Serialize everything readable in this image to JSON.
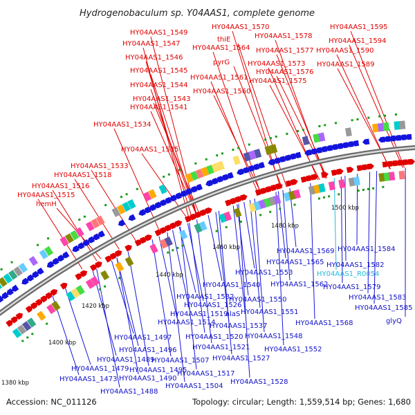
{
  "title": "Hydrogenobaculum sp. Y04AAS1, complete genome",
  "footer": {
    "accession": "Accession: NC_011126",
    "topology": "Topology: circular; Length: 1,559,514 bp; Genes: 1,680"
  },
  "ticks": [
    "1380 kbp",
    "1400 kbp",
    "1420 kbp",
    "1440 kbp",
    "1460 kbp",
    "1480 kbp",
    "1500 kbp"
  ],
  "top_labels": [
    "HY04AAS1_1549",
    "HY04AAS1_1547",
    "HY04AAS1_1546",
    "HY04AAS1_1545",
    "HY04AAS1_1544",
    "HY04AAS1_1543",
    "HY04AAS1_1541",
    "HY04AAS1_1534",
    "HY04AAS1_1535",
    "HY04AAS1_1533",
    "HY04AAS1_1518",
    "HY04AAS1_1516",
    "HY04AAS1_1515",
    "hemH",
    "HY04AAS1_1570",
    "thiE",
    "HY04AAS1_1564",
    "pyrG",
    "HY04AAS1_1561",
    "HY04AAS1_1560",
    "HY04AAS1_1578",
    "HY04AAS1_1577",
    "HY04AAS1_1573",
    "HY04AAS1_1576",
    "HY04AAS1_1575",
    "HY04AAS1_1595",
    "HY04AAS1_1594",
    "HY04AAS1_1590",
    "HY04AAS1_1589"
  ],
  "bottom_labels": [
    "HY04AAS1_1569",
    "HY04AAS1_1584",
    "HY04AAS1_1565",
    "HY04AAS1_1582",
    "HY04AAS1_R0054",
    "HY04AAS1_1553",
    "HY04AAS1_1562",
    "HY04AAS1_1579",
    "HY04AAS1_1540",
    "HY04AAS1_1583",
    "HY04AAS1_1532",
    "HY04AAS1_1550",
    "HY04AAS1_1526",
    "HY04AAS1_1551",
    "HY04AAS1_1585",
    "HY04AAS1_1519",
    "alaS",
    "HY04AAS1_1514",
    "HY04AAS1_1537",
    "HY04AAS1_1568",
    "glyQ",
    "HY04AAS1_1497",
    "HY04AAS1_1520",
    "HY04AAS1_1548",
    "HY04AAS1_1496",
    "HY04AAS1_1521",
    "HY04AAS1_1552",
    "HY04AAS1_1489",
    "HY04AAS1_1507",
    "HY04AAS1_1527",
    "HY04AAS1_1479",
    "HY04AAS1_1495",
    "HY04AAS1_1473",
    "HY04AAS1_1490",
    "HY04AAS1_1517",
    "HY04AAS1_1528",
    "HY04AAS1_1504",
    "HY04AAS1_1488"
  ],
  "colors": {
    "forward_gene": "#e00000",
    "reverse_gene": "#1414dc",
    "rna_label": "#22bbdd",
    "backbone": "#8a8a8a"
  }
}
